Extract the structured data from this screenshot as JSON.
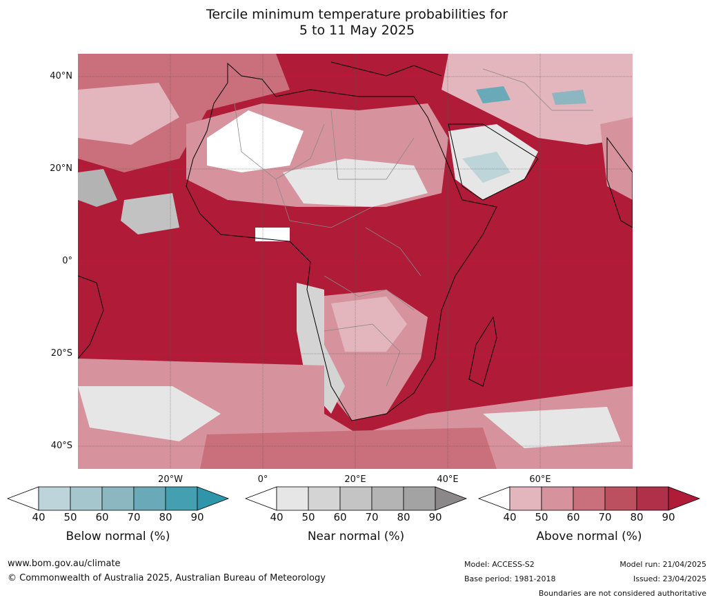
{
  "title": {
    "line1": "Tercile minimum temperature probabilities for",
    "line2": "5 to 11 May 2025"
  },
  "map": {
    "lat_labels": [
      "40°N",
      "20°N",
      "0°",
      "20°S",
      "40°S"
    ],
    "lon_labels": [
      "20°W",
      "0°",
      "20°E",
      "40°E",
      "60°E"
    ],
    "colors": {
      "above": [
        "#e3b5bd",
        "#d6939d",
        "#c9707c",
        "#bc505e",
        "#b02d43",
        "#b01b38"
      ],
      "near": [
        "#e6e6e6",
        "#d4d4d4",
        "#c2c2c2",
        "#b3b3b3",
        "#a3a3a3",
        "#8a8888"
      ],
      "below": [
        "#bdd4d9",
        "#a6c6cd",
        "#8cb7c1",
        "#6aaab8",
        "#449fb0",
        "#2e93a9"
      ]
    }
  },
  "colorbars": [
    {
      "id": "below",
      "title": "Below normal (%)",
      "ticks": [
        "40",
        "50",
        "60",
        "70",
        "80",
        "90"
      ],
      "colors": [
        "#ffffff",
        "#bdd4da",
        "#a6c6cd",
        "#8cb7c1",
        "#6aaab8",
        "#449fb0",
        "#2f95ab"
      ]
    },
    {
      "id": "near",
      "title": "Near normal (%)",
      "ticks": [
        "40",
        "50",
        "60",
        "70",
        "80",
        "90"
      ],
      "colors": [
        "#ffffff",
        "#e6e6e6",
        "#d4d4d4",
        "#c4c4c4",
        "#b4b4b4",
        "#a3a3a3",
        "#8a8888"
      ]
    },
    {
      "id": "above",
      "title": "Above normal (%)",
      "ticks": [
        "40",
        "50",
        "60",
        "70",
        "80",
        "90"
      ],
      "colors": [
        "#ffffff",
        "#e3b5bd",
        "#d6939d",
        "#c9707c",
        "#bc505e",
        "#b0304a",
        "#b01b38"
      ]
    }
  ],
  "footer": {
    "url": "www.bom.gov.au/climate",
    "copyright": "© Commonwealth of Australia 2025, Australian Bureau of Meteorology",
    "model": "Model: ACCESS-S2",
    "base_period": "Base period: 1981-2018",
    "model_run": "Model run: 21/04/2025",
    "issued": "Issued: 23/04/2025",
    "disclaimer": "Boundaries are not considered authoritative"
  }
}
